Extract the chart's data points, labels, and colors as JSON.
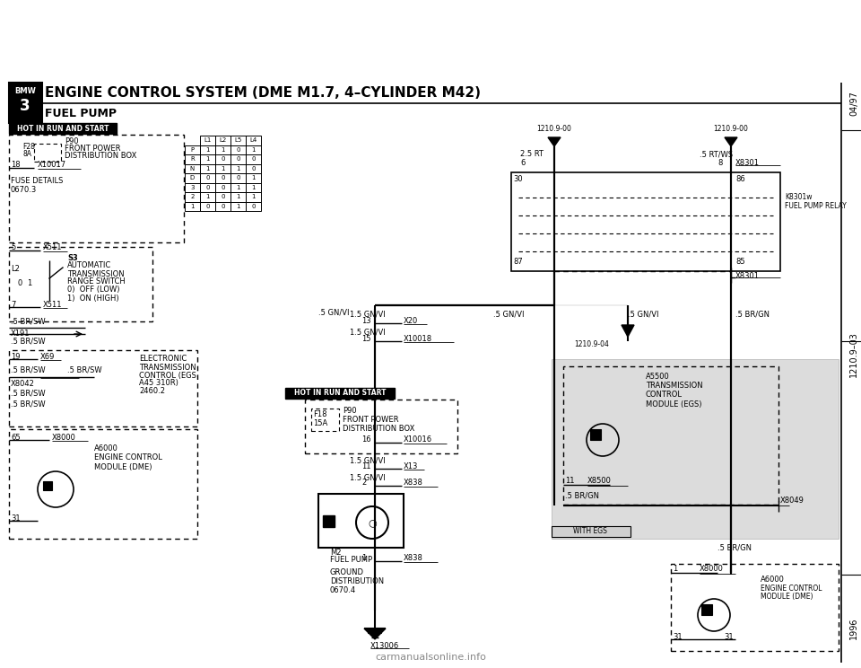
{
  "title_main": "ENGINE CONTROL SYSTEM (DME M1.7, 4–CYLINDER M42)",
  "title_sub": "FUEL PUMP",
  "page_ref_top": "04/97",
  "page_ref_mid": "1210.9–03",
  "page_ref_bot": "1996",
  "bg_color": "#ffffff",
  "gray_fill": "#c0c0c0",
  "watermark": "carmanualsonline.info",
  "table_cols": [
    "L1",
    "L2",
    "L5",
    "L4"
  ],
  "table_rows": [
    [
      "P",
      "1",
      "1",
      "0",
      "1"
    ],
    [
      "R",
      "1",
      "0",
      "0",
      "0"
    ],
    [
      "N",
      "1",
      "1",
      "1",
      "0"
    ],
    [
      "D",
      "0",
      "0",
      "0",
      "1"
    ],
    [
      "3",
      "0",
      "0",
      "1",
      "1"
    ],
    [
      "2",
      "1",
      "0",
      "1",
      "1"
    ],
    [
      "1",
      "0",
      "0",
      "1",
      "0"
    ]
  ]
}
